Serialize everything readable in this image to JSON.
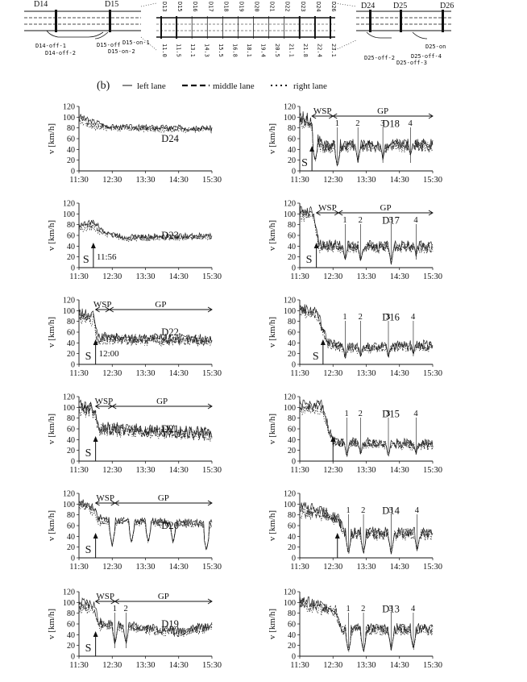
{
  "figure": {
    "panel_label": "(b)",
    "legend": [
      {
        "name": "left lane",
        "dash": "solid"
      },
      {
        "name": "middle lane",
        "dash": "dashed"
      },
      {
        "name": "right lane",
        "dash": "dotted"
      }
    ]
  },
  "schematic": {
    "left": {
      "detectors": [
        "D14",
        "D15"
      ],
      "ramps": [
        "D14-off-1",
        "D14-off-2",
        "D15-off",
        "D15-on-1",
        "D15-on-2"
      ]
    },
    "middle": {
      "top_labels": [
        "D13",
        "D15",
        "D16",
        "D17",
        "D18",
        "D19",
        "D20",
        "D21",
        "D22",
        "D23",
        "D24",
        "D26"
      ],
      "km_labels": [
        "11.0",
        "11.5",
        "13.1",
        "14.3",
        "15.5",
        "16.8",
        "18.1",
        "19.4",
        "20.5",
        "21.1",
        "21.8",
        "22.4",
        "23.1"
      ]
    },
    "right": {
      "detectors": [
        "D24",
        "D25",
        "D26"
      ],
      "ramps": [
        "D25-on",
        "D25-off-2",
        "D25-off-3",
        "D25-off-4"
      ]
    }
  },
  "chart_data": [
    {
      "type": "line",
      "detector": "D24",
      "xlabel": "",
      "ylabel": "v [km/h]",
      "x_ticks": [
        "11:30",
        "12:30",
        "13:30",
        "14:30",
        "15:30"
      ],
      "xlim": [
        "11:30",
        "15:30"
      ],
      "ylim": [
        0,
        120
      ],
      "y_ticks": [
        0,
        20,
        40,
        60,
        80,
        100,
        120
      ],
      "series_names": [
        "left lane",
        "middle lane",
        "right lane"
      ],
      "profile": [
        [
          0,
          98
        ],
        [
          20,
          88
        ],
        [
          60,
          80
        ],
        [
          240,
          78
        ]
      ],
      "noise": 5,
      "annotations": {
        "S": null,
        "time": null,
        "arrows": [],
        "wsp_span": null,
        "gp_span": null,
        "numbered": []
      }
    },
    {
      "type": "line",
      "detector": "D18",
      "xlabel": "",
      "ylabel": "v [km/h]",
      "x_ticks": [
        "11:30",
        "12:30",
        "13:30",
        "14:30",
        "15:30"
      ],
      "xlim": [
        "11:30",
        "15:30"
      ],
      "ylim": [
        0,
        120
      ],
      "y_ticks": [
        0,
        20,
        40,
        60,
        80,
        100,
        120
      ],
      "series_names": [
        "left lane",
        "middle lane",
        "right lane"
      ],
      "profile": [
        [
          0,
          95
        ],
        [
          20,
          92
        ],
        [
          28,
          60
        ],
        [
          45,
          45
        ],
        [
          240,
          48
        ]
      ],
      "noise": 12,
      "dips": [
        {
          "t": 28,
          "v": 15
        },
        {
          "t": 68,
          "v": 5
        },
        {
          "t": 105,
          "v": 15
        },
        {
          "t": 150,
          "v": 20
        },
        {
          "t": 200,
          "v": 25
        }
      ],
      "annotations": {
        "S": {
          "t": 22
        },
        "time": null,
        "arrows": [
          22
        ],
        "wsp_span": [
          22,
          60
        ],
        "gp_span": [
          60,
          240
        ],
        "numbered": [
          {
            "label": "1",
            "t": 68
          },
          {
            "label": "2",
            "t": 105
          },
          {
            "label": "3",
            "t": 150
          },
          {
            "label": "4",
            "t": 200
          }
        ]
      }
    },
    {
      "type": "line",
      "detector": "D23",
      "xlabel": "",
      "ylabel": "v [km/h]",
      "x_ticks": [
        "11:30",
        "12:30",
        "13:30",
        "14:30",
        "15:30"
      ],
      "xlim": [
        "11:30",
        "15:30"
      ],
      "ylim": [
        0,
        120
      ],
      "y_ticks": [
        0,
        20,
        40,
        60,
        80,
        100,
        120
      ],
      "series_names": [
        "left lane",
        "middle lane",
        "right lane"
      ],
      "profile": [
        [
          0,
          75
        ],
        [
          26,
          80
        ],
        [
          40,
          68
        ],
        [
          80,
          55
        ],
        [
          240,
          58
        ]
      ],
      "noise": 5,
      "annotations": {
        "S": {
          "t": 26
        },
        "time": {
          "label": "11:56",
          "t": 26
        },
        "arrows": [
          26
        ],
        "wsp_span": null,
        "gp_span": null,
        "numbered": []
      }
    },
    {
      "type": "line",
      "detector": "D17",
      "xlabel": "",
      "ylabel": "v [km/h]",
      "x_ticks": [
        "11:30",
        "12:30",
        "13:30",
        "14:30",
        "15:30"
      ],
      "xlim": [
        "11:30",
        "15:30"
      ],
      "ylim": [
        0,
        120
      ],
      "y_ticks": [
        0,
        20,
        40,
        60,
        80,
        100,
        120
      ],
      "series_names": [
        "left lane",
        "middle lane",
        "right lane"
      ],
      "profile": [
        [
          0,
          100
        ],
        [
          25,
          100
        ],
        [
          35,
          40
        ],
        [
          240,
          38
        ]
      ],
      "noise": 10,
      "dips": [
        {
          "t": 82,
          "v": 10
        },
        {
          "t": 110,
          "v": 8
        },
        {
          "t": 165,
          "v": 5
        },
        {
          "t": 210,
          "v": 20
        }
      ],
      "annotations": {
        "S": {
          "t": 30
        },
        "time": null,
        "arrows": [
          30
        ],
        "wsp_span": [
          30,
          70
        ],
        "gp_span": [
          70,
          240
        ],
        "numbered": [
          {
            "label": "1",
            "t": 82
          },
          {
            "label": "2",
            "t": 110
          },
          {
            "label": "3",
            "t": 165
          },
          {
            "label": "4",
            "t": 210
          }
        ]
      }
    },
    {
      "type": "line",
      "detector": "D22",
      "xlabel": "",
      "ylabel": "v [km/h]",
      "x_ticks": [
        "11:30",
        "12:30",
        "13:30",
        "14:30",
        "15:30"
      ],
      "xlim": [
        "11:30",
        "15:30"
      ],
      "ylim": [
        0,
        120
      ],
      "y_ticks": [
        0,
        20,
        40,
        60,
        80,
        100,
        120
      ],
      "series_names": [
        "left lane",
        "middle lane",
        "right lane"
      ],
      "profile": [
        [
          0,
          90
        ],
        [
          28,
          85
        ],
        [
          32,
          48
        ],
        [
          240,
          45
        ]
      ],
      "noise": 10,
      "annotations": {
        "S": {
          "t": 30
        },
        "time": {
          "label": "12:00",
          "t": 30
        },
        "arrows": [
          30
        ],
        "wsp_span": [
          30,
          55
        ],
        "gp_span": [
          55,
          240
        ],
        "numbered": []
      }
    },
    {
      "type": "line",
      "detector": "D16",
      "xlabel": "",
      "ylabel": "v [km/h]",
      "x_ticks": [
        "11:30",
        "12:30",
        "13:30",
        "14:30",
        "15:30"
      ],
      "xlim": [
        "11:30",
        "15:30"
      ],
      "ylim": [
        0,
        120
      ],
      "y_ticks": [
        0,
        20,
        40,
        60,
        80,
        100,
        120
      ],
      "series_names": [
        "left lane",
        "middle lane",
        "right lane"
      ],
      "profile": [
        [
          0,
          100
        ],
        [
          30,
          95
        ],
        [
          50,
          40
        ],
        [
          80,
          30
        ],
        [
          240,
          35
        ]
      ],
      "noise": 9,
      "dips": [
        {
          "t": 82,
          "v": 8
        },
        {
          "t": 110,
          "v": 10
        },
        {
          "t": 160,
          "v": 10
        },
        {
          "t": 205,
          "v": 15
        }
      ],
      "annotations": {
        "S": {
          "t": 42
        },
        "time": null,
        "arrows": [
          42
        ],
        "wsp_span": null,
        "gp_span": null,
        "numbered": [
          {
            "label": "1",
            "t": 82
          },
          {
            "label": "2",
            "t": 110
          },
          {
            "label": "3",
            "t": 160
          },
          {
            "label": "4",
            "t": 205
          }
        ]
      }
    },
    {
      "type": "line",
      "detector": "D21",
      "xlabel": "",
      "ylabel": "v [km/h]",
      "x_ticks": [
        "11:30",
        "12:30",
        "13:30",
        "14:30",
        "15:30"
      ],
      "xlim": [
        "11:30",
        "15:30"
      ],
      "ylim": [
        0,
        120
      ],
      "y_ticks": [
        0,
        20,
        40,
        60,
        80,
        100,
        120
      ],
      "series_names": [
        "left lane",
        "middle lane",
        "right lane"
      ],
      "profile": [
        [
          0,
          100
        ],
        [
          28,
          95
        ],
        [
          35,
          60
        ],
        [
          240,
          50
        ]
      ],
      "noise": 12,
      "annotations": {
        "S": {
          "t": 30
        },
        "time": null,
        "arrows": [
          30
        ],
        "wsp_span": [
          30,
          60
        ],
        "gp_span": [
          60,
          240
        ],
        "numbered": []
      }
    },
    {
      "type": "line",
      "detector": "D15",
      "xlabel": "",
      "ylabel": "v [km/h]",
      "x_ticks": [
        "11:30",
        "12:30",
        "13:30",
        "14:30",
        "15:30"
      ],
      "xlim": [
        "11:30",
        "15:30"
      ],
      "ylim": [
        0,
        120
      ],
      "y_ticks": [
        0,
        20,
        40,
        60,
        80,
        100,
        120
      ],
      "series_names": [
        "left lane",
        "middle lane",
        "right lane"
      ],
      "profile": [
        [
          0,
          100
        ],
        [
          40,
          100
        ],
        [
          60,
          35
        ],
        [
          240,
          30
        ]
      ],
      "noise": 9,
      "dips": [
        {
          "t": 85,
          "v": 5
        },
        {
          "t": 110,
          "v": 8
        },
        {
          "t": 160,
          "v": 5
        },
        {
          "t": 210,
          "v": 10
        }
      ],
      "annotations": {
        "S": null,
        "time": null,
        "arrows": [
          60
        ],
        "wsp_span": null,
        "gp_span": null,
        "numbered": [
          {
            "label": "1",
            "t": 85
          },
          {
            "label": "2",
            "t": 110
          },
          {
            "label": "3",
            "t": 160
          },
          {
            "label": "4",
            "t": 210
          }
        ]
      }
    },
    {
      "type": "line",
      "detector": "D20",
      "xlabel": "",
      "ylabel": "v [km/h]",
      "x_ticks": [
        "11:30",
        "12:30",
        "13:30",
        "14:30",
        "15:30"
      ],
      "xlim": [
        "11:30",
        "15:30"
      ],
      "ylim": [
        0,
        120
      ],
      "y_ticks": [
        0,
        20,
        40,
        60,
        80,
        100,
        120
      ],
      "series_names": [
        "left lane",
        "middle lane",
        "right lane"
      ],
      "profile": [
        [
          0,
          100
        ],
        [
          28,
          90
        ],
        [
          35,
          70
        ],
        [
          240,
          62
        ]
      ],
      "noise": 7,
      "dips": [
        {
          "t": 60,
          "v": 20
        },
        {
          "t": 95,
          "v": 25
        },
        {
          "t": 125,
          "v": 25
        },
        {
          "t": 170,
          "v": 25
        },
        {
          "t": 230,
          "v": 10
        }
      ],
      "annotations": {
        "S": {
          "t": 30
        },
        "time": null,
        "arrows": [
          30
        ],
        "wsp_span": [
          30,
          65
        ],
        "gp_span": [
          65,
          240
        ],
        "numbered": []
      }
    },
    {
      "type": "line",
      "detector": "D14",
      "xlabel": "",
      "ylabel": "v [km/h]",
      "x_ticks": [
        "11:30",
        "12:30",
        "13:30",
        "14:30",
        "15:30"
      ],
      "xlim": [
        "11:30",
        "15:30"
      ],
      "ylim": [
        0,
        120
      ],
      "y_ticks": [
        0,
        20,
        40,
        60,
        80,
        100,
        120
      ],
      "series_names": [
        "left lane",
        "middle lane",
        "right lane"
      ],
      "profile": [
        [
          0,
          90
        ],
        [
          50,
          80
        ],
        [
          70,
          70
        ],
        [
          80,
          45
        ],
        [
          240,
          45
        ]
      ],
      "noise": 11,
      "dips": [
        {
          "t": 88,
          "v": 5
        },
        {
          "t": 115,
          "v": 5
        },
        {
          "t": 165,
          "v": 5
        },
        {
          "t": 212,
          "v": 10
        }
      ],
      "annotations": {
        "S": null,
        "time": null,
        "arrows": [
          68
        ],
        "wsp_span": null,
        "gp_span": null,
        "numbered": [
          {
            "label": "1",
            "t": 88
          },
          {
            "label": "2",
            "t": 115
          },
          {
            "label": "3",
            "t": 165
          },
          {
            "label": "4",
            "t": 212
          }
        ]
      }
    },
    {
      "type": "line",
      "detector": "D19",
      "xlabel": "",
      "ylabel": "v [km/h]",
      "x_ticks": [
        "11:30",
        "12:30",
        "13:30",
        "14:30",
        "15:30"
      ],
      "xlim": [
        "11:30",
        "15:30"
      ],
      "ylim": [
        0,
        120
      ],
      "y_ticks": [
        0,
        20,
        40,
        60,
        80,
        100,
        120
      ],
      "series_names": [
        "left lane",
        "middle lane",
        "right lane"
      ],
      "profile": [
        [
          0,
          95
        ],
        [
          28,
          90
        ],
        [
          35,
          60
        ],
        [
          180,
          45
        ],
        [
          240,
          55
        ]
      ],
      "noise": 9,
      "dips": [
        {
          "t": 65,
          "v": 20
        },
        {
          "t": 85,
          "v": 20
        }
      ],
      "annotations": {
        "S": {
          "t": 30
        },
        "time": null,
        "arrows": [
          30
        ],
        "wsp_span": [
          30,
          65
        ],
        "gp_span": [
          65,
          240
        ],
        "numbered": [
          {
            "label": "1",
            "t": 65
          },
          {
            "label": "2",
            "t": 85
          }
        ]
      }
    },
    {
      "type": "line",
      "detector": "D13",
      "xlabel": "",
      "ylabel": "v [km/h]",
      "x_ticks": [
        "11:30",
        "12:30",
        "13:30",
        "14:30",
        "15:30"
      ],
      "xlim": [
        "11:30",
        "15:30"
      ],
      "ylim": [
        0,
        120
      ],
      "y_ticks": [
        0,
        20,
        40,
        60,
        80,
        100,
        120
      ],
      "series_names": [
        "left lane",
        "middle lane",
        "right lane"
      ],
      "profile": [
        [
          0,
          100
        ],
        [
          40,
          90
        ],
        [
          65,
          85
        ],
        [
          75,
          50
        ],
        [
          240,
          50
        ]
      ],
      "noise": 10,
      "dips": [
        {
          "t": 88,
          "v": 5
        },
        {
          "t": 115,
          "v": 5
        },
        {
          "t": 165,
          "v": 10
        },
        {
          "t": 205,
          "v": 10
        }
      ],
      "annotations": {
        "S": null,
        "time": null,
        "arrows": [],
        "wsp_span": null,
        "gp_span": null,
        "numbered": [
          {
            "label": "1",
            "t": 88
          },
          {
            "label": "2",
            "t": 115
          },
          {
            "label": "3",
            "t": 165
          },
          {
            "label": "4",
            "t": 205
          }
        ]
      }
    }
  ]
}
